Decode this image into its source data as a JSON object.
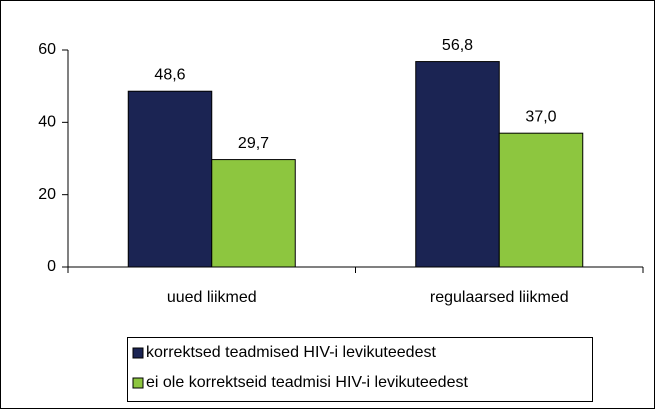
{
  "chart_data": {
    "type": "bar",
    "categories": [
      "uued liikmed",
      "regulaarsed liikmed"
    ],
    "series": [
      {
        "name": "korrektsed teadmised HIV-i levikuteedest",
        "color": "#1b2453",
        "values": [
          48.6,
          56.8
        ],
        "value_labels": [
          "48,6",
          "56,8"
        ]
      },
      {
        "name": "ei ole korrektseid teadmisi HIV-i levikuteedest",
        "color": "#8dc63f",
        "values": [
          29.7,
          37.0
        ],
        "value_labels": [
          "29,7",
          "37,0"
        ]
      }
    ],
    "ylim": [
      0,
      60
    ],
    "yticks": [
      0,
      20,
      40,
      60
    ],
    "grid": false
  }
}
